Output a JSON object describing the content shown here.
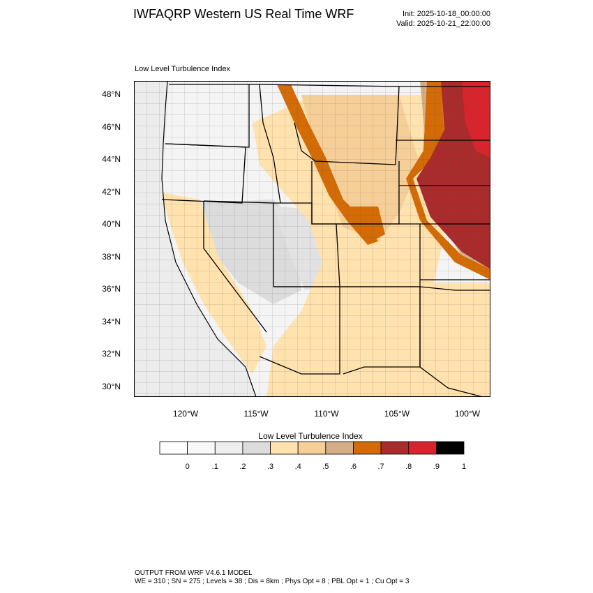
{
  "header": {
    "title": "IWFAQRP Western US Real Time WRF",
    "init": "Init: 2025-10-18_00:00:00",
    "valid": "Valid: 2025-10-21_22:00:00"
  },
  "map": {
    "subtitle": "Low Level Turbulence Index",
    "lat_ticks": [
      "48°N",
      "46°N",
      "44°N",
      "42°N",
      "40°N",
      "38°N",
      "36°N",
      "34°N",
      "32°N",
      "30°N"
    ],
    "lon_ticks": [
      "120°W",
      "115°W",
      "110°W",
      "105°W",
      "100°W"
    ]
  },
  "colorbar": {
    "title": "Low Level Turbulence Index",
    "labels": [
      "0",
      ".1",
      ".2",
      ".3",
      ".4",
      ".5",
      ".6",
      ".7",
      ".8",
      ".9",
      "1"
    ],
    "colors": [
      "#ffffff",
      "#f8f8f8",
      "#eeeeee",
      "#dcdcdc",
      "#ffe2ae",
      "#f6cf98",
      "#d4ae86",
      "#d36b06",
      "#aa2b2b",
      "#d8252d",
      "#000000"
    ]
  },
  "footer": {
    "line1": "OUTPUT FROM WRF V4.6.1 MODEL",
    "line2": "WE = 310 ; SN = 275 ; Levels = 38 ; Dis = 8km ; Phys Opt = 8 ; PBL Opt = 1 ; Cu Opt = 3"
  }
}
